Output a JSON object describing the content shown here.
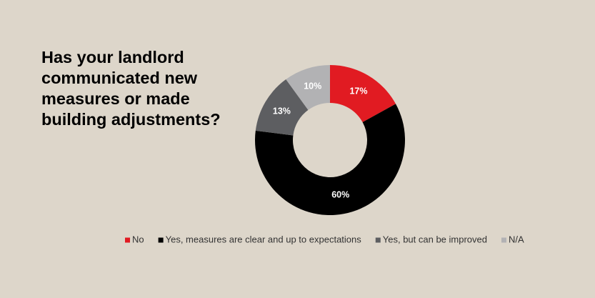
{
  "chart_data": {
    "type": "donut",
    "title": "Has your landlord communicated new measures or made building adjustments?",
    "categories": [
      "No",
      "Yes, measures are clear and up to expectations",
      "Yes, but can be improved",
      "N/A"
    ],
    "values": [
      17,
      60,
      13,
      10
    ],
    "value_labels": [
      "17%",
      "60%",
      "13%",
      "10%"
    ],
    "colors": [
      "#e11b22",
      "#000000",
      "#5d5e61",
      "#b2b2b4"
    ],
    "legend": "bottom"
  }
}
